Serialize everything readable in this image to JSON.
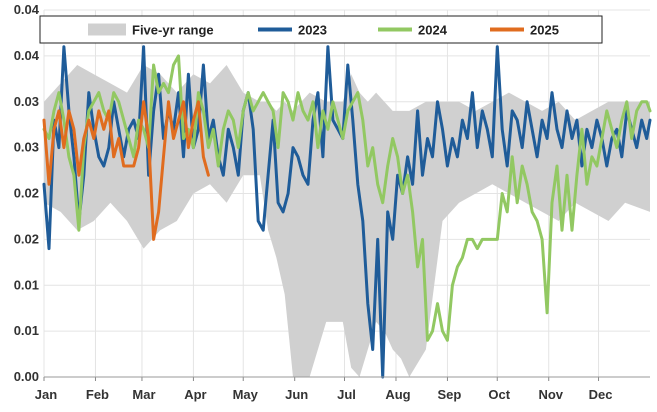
{
  "chart_data": {
    "type": "line",
    "title": "",
    "xlabel": "",
    "ylabel": "",
    "ylim": [
      0.0,
      0.04
    ],
    "y_ticks": [
      {
        "value": 0.0,
        "label": "0.00"
      },
      {
        "value": 0.005,
        "label": "0.01"
      },
      {
        "value": 0.01,
        "label": "0.01"
      },
      {
        "value": 0.015,
        "label": "0.02"
      },
      {
        "value": 0.02,
        "label": "0.02"
      },
      {
        "value": 0.025,
        "label": "0.03"
      },
      {
        "value": 0.03,
        "label": "0.03"
      },
      {
        "value": 0.035,
        "label": "0.04"
      },
      {
        "value": 0.04,
        "label": "0.04"
      }
    ],
    "x_domain": [
      0,
      365
    ],
    "x_ticks": [
      {
        "day": 0,
        "label": "Jan"
      },
      {
        "day": 31,
        "label": "Feb"
      },
      {
        "day": 59,
        "label": "Mar"
      },
      {
        "day": 90,
        "label": "Apr"
      },
      {
        "day": 120,
        "label": "May"
      },
      {
        "day": 151,
        "label": "Jun"
      },
      {
        "day": 181,
        "label": "Jul"
      },
      {
        "day": 212,
        "label": "Aug"
      },
      {
        "day": 243,
        "label": "Sep"
      },
      {
        "day": 273,
        "label": "Oct"
      },
      {
        "day": 304,
        "label": "Nov"
      },
      {
        "day": 334,
        "label": "Dec"
      }
    ],
    "legend": {
      "placement": "top",
      "entries": [
        {
          "name": "Five-yr range",
          "kind": "area",
          "color": "#d0d0d0"
        },
        {
          "name": "2023",
          "kind": "line",
          "color": "#1f5c99"
        },
        {
          "name": "2024",
          "kind": "line",
          "color": "#92c862"
        },
        {
          "name": "2025",
          "kind": "line",
          "color": "#e06c1f"
        }
      ]
    },
    "range": {
      "name": "Five-yr range",
      "color": "#d0d0d0",
      "x": [
        0,
        10,
        20,
        30,
        40,
        50,
        60,
        70,
        80,
        90,
        100,
        110,
        120,
        130,
        135,
        140,
        145,
        150,
        160,
        170,
        180,
        185,
        190,
        195,
        200,
        205,
        210,
        215,
        220,
        230,
        240,
        250,
        260,
        270,
        280,
        290,
        300,
        310,
        320,
        330,
        340,
        350,
        365
      ],
      "low": [
        0.019,
        0.018,
        0.016,
        0.017,
        0.019,
        0.017,
        0.014,
        0.016,
        0.017,
        0.02,
        0.021,
        0.019,
        0.022,
        0.022,
        0.016,
        0.013,
        0.009,
        0.0,
        0.0,
        0.006,
        0.006,
        0.001,
        0.0,
        0.003,
        0.006,
        0.005,
        0.003,
        0.002,
        0.0,
        0.003,
        0.017,
        0.019,
        0.02,
        0.021,
        0.02,
        0.019,
        0.018,
        0.017,
        0.019,
        0.018,
        0.017,
        0.019,
        0.018
      ],
      "high": [
        0.03,
        0.032,
        0.034,
        0.033,
        0.032,
        0.031,
        0.034,
        0.033,
        0.031,
        0.033,
        0.032,
        0.034,
        0.031,
        0.03,
        0.03,
        0.029,
        0.03,
        0.029,
        0.031,
        0.03,
        0.03,
        0.033,
        0.031,
        0.03,
        0.031,
        0.03,
        0.029,
        0.029,
        0.029,
        0.03,
        0.03,
        0.03,
        0.029,
        0.03,
        0.031,
        0.03,
        0.029,
        0.03,
        0.028,
        0.029,
        0.03,
        0.03,
        0.03
      ]
    },
    "series": [
      {
        "name": "2023",
        "color": "#1f5c99",
        "x": [
          0,
          3,
          6,
          9,
          12,
          15,
          18,
          21,
          24,
          27,
          30,
          33,
          36,
          39,
          42,
          45,
          48,
          51,
          54,
          57,
          60,
          63,
          66,
          69,
          72,
          75,
          78,
          81,
          84,
          87,
          90,
          93,
          96,
          99,
          102,
          105,
          108,
          111,
          114,
          117,
          120,
          123,
          126,
          129,
          132,
          135,
          138,
          141,
          144,
          147,
          150,
          153,
          156,
          159,
          162,
          165,
          168,
          171,
          174,
          177,
          180,
          183,
          186,
          189,
          192,
          195,
          198,
          201,
          204,
          207,
          210,
          213,
          216,
          219,
          222,
          225,
          228,
          231,
          234,
          237,
          240,
          243,
          246,
          249,
          252,
          255,
          258,
          261,
          264,
          267,
          270,
          273,
          276,
          279,
          282,
          285,
          288,
          291,
          294,
          297,
          300,
          303,
          306,
          309,
          312,
          315,
          318,
          321,
          324,
          327,
          330,
          333,
          336,
          339,
          342,
          345,
          348,
          351,
          354,
          357,
          360,
          363,
          365
        ],
        "y": [
          0.021,
          0.014,
          0.028,
          0.025,
          0.036,
          0.029,
          0.024,
          0.017,
          0.022,
          0.031,
          0.027,
          0.024,
          0.023,
          0.025,
          0.03,
          0.027,
          0.024,
          0.027,
          0.028,
          0.026,
          0.036,
          0.022,
          0.029,
          0.033,
          0.026,
          0.029,
          0.027,
          0.031,
          0.024,
          0.033,
          0.025,
          0.027,
          0.034,
          0.026,
          0.028,
          0.024,
          0.022,
          0.027,
          0.025,
          0.022,
          0.029,
          0.031,
          0.027,
          0.017,
          0.016,
          0.022,
          0.028,
          0.019,
          0.018,
          0.02,
          0.025,
          0.024,
          0.022,
          0.021,
          0.028,
          0.031,
          0.024,
          0.036,
          0.028,
          0.027,
          0.026,
          0.034,
          0.028,
          0.021,
          0.017,
          0.008,
          0.003,
          0.015,
          0.0,
          0.018,
          0.015,
          0.022,
          0.02,
          0.024,
          0.021,
          0.029,
          0.022,
          0.026,
          0.024,
          0.03,
          0.027,
          0.023,
          0.026,
          0.024,
          0.028,
          0.026,
          0.031,
          0.025,
          0.029,
          0.027,
          0.024,
          0.036,
          0.027,
          0.023,
          0.029,
          0.028,
          0.025,
          0.03,
          0.027,
          0.024,
          0.028,
          0.026,
          0.031,
          0.027,
          0.025,
          0.029,
          0.026,
          0.028,
          0.023,
          0.027,
          0.025,
          0.028,
          0.026,
          0.023,
          0.026,
          0.027,
          0.024,
          0.029,
          0.027,
          0.025,
          0.028,
          0.026,
          0.028
        ]
      },
      {
        "name": "2024",
        "color": "#92c862",
        "x": [
          0,
          3,
          6,
          9,
          12,
          15,
          18,
          21,
          24,
          27,
          30,
          33,
          36,
          39,
          42,
          45,
          48,
          51,
          54,
          57,
          60,
          63,
          66,
          69,
          72,
          75,
          78,
          81,
          84,
          87,
          90,
          93,
          96,
          99,
          102,
          105,
          108,
          111,
          114,
          117,
          120,
          123,
          126,
          129,
          132,
          135,
          138,
          141,
          144,
          147,
          150,
          153,
          156,
          159,
          162,
          165,
          168,
          171,
          174,
          177,
          180,
          183,
          186,
          189,
          192,
          195,
          198,
          201,
          204,
          207,
          210,
          213,
          216,
          219,
          222,
          225,
          228,
          231,
          234,
          237,
          240,
          243,
          246,
          249,
          252,
          255,
          258,
          261,
          264,
          267,
          270,
          273,
          276,
          279,
          282,
          285,
          288,
          291,
          294,
          297,
          300,
          303,
          306,
          309,
          312,
          315,
          318,
          321,
          324,
          327,
          330,
          333,
          336,
          339,
          342,
          345,
          348,
          351,
          354,
          357,
          360,
          363,
          365
        ],
        "y": [
          0.027,
          0.026,
          0.029,
          0.031,
          0.028,
          0.024,
          0.022,
          0.016,
          0.025,
          0.029,
          0.03,
          0.031,
          0.029,
          0.028,
          0.031,
          0.03,
          0.028,
          0.026,
          0.024,
          0.028,
          0.027,
          0.025,
          0.034,
          0.031,
          0.032,
          0.031,
          0.034,
          0.035,
          0.026,
          0.027,
          0.025,
          0.031,
          0.029,
          0.025,
          0.027,
          0.023,
          0.027,
          0.029,
          0.028,
          0.025,
          0.029,
          0.031,
          0.029,
          0.03,
          0.031,
          0.03,
          0.029,
          0.025,
          0.031,
          0.03,
          0.028,
          0.031,
          0.029,
          0.028,
          0.03,
          0.025,
          0.029,
          0.027,
          0.03,
          0.028,
          0.026,
          0.029,
          0.03,
          0.031,
          0.028,
          0.023,
          0.025,
          0.021,
          0.019,
          0.023,
          0.026,
          0.024,
          0.02,
          0.022,
          0.018,
          0.012,
          0.015,
          0.004,
          0.005,
          0.008,
          0.005,
          0.004,
          0.01,
          0.012,
          0.013,
          0.015,
          0.015,
          0.014,
          0.015,
          0.015,
          0.015,
          0.015,
          0.02,
          0.018,
          0.024,
          0.019,
          0.023,
          0.021,
          0.018,
          0.017,
          0.015,
          0.007,
          0.019,
          0.023,
          0.016,
          0.022,
          0.016,
          0.022,
          0.027,
          0.021,
          0.024,
          0.023,
          0.026,
          0.029,
          0.027,
          0.025,
          0.028,
          0.03,
          0.026,
          0.029,
          0.03,
          0.03,
          0.029
        ]
      },
      {
        "name": "2025",
        "color": "#e06c1f",
        "x": [
          0,
          3,
          6,
          9,
          12,
          15,
          18,
          21,
          24,
          27,
          30,
          33,
          36,
          39,
          42,
          45,
          48,
          51,
          54,
          57,
          60,
          63,
          66,
          69,
          72,
          75,
          78,
          81,
          84,
          87,
          90,
          93,
          96,
          99
        ],
        "y": [
          0.028,
          0.021,
          0.027,
          0.029,
          0.025,
          0.029,
          0.027,
          0.022,
          0.026,
          0.028,
          0.026,
          0.029,
          0.027,
          0.029,
          0.024,
          0.026,
          0.023,
          0.023,
          0.023,
          0.025,
          0.03,
          0.026,
          0.015,
          0.018,
          0.024,
          0.03,
          0.026,
          0.028,
          0.03,
          0.025,
          0.028,
          0.03,
          0.024,
          0.022
        ]
      }
    ]
  }
}
